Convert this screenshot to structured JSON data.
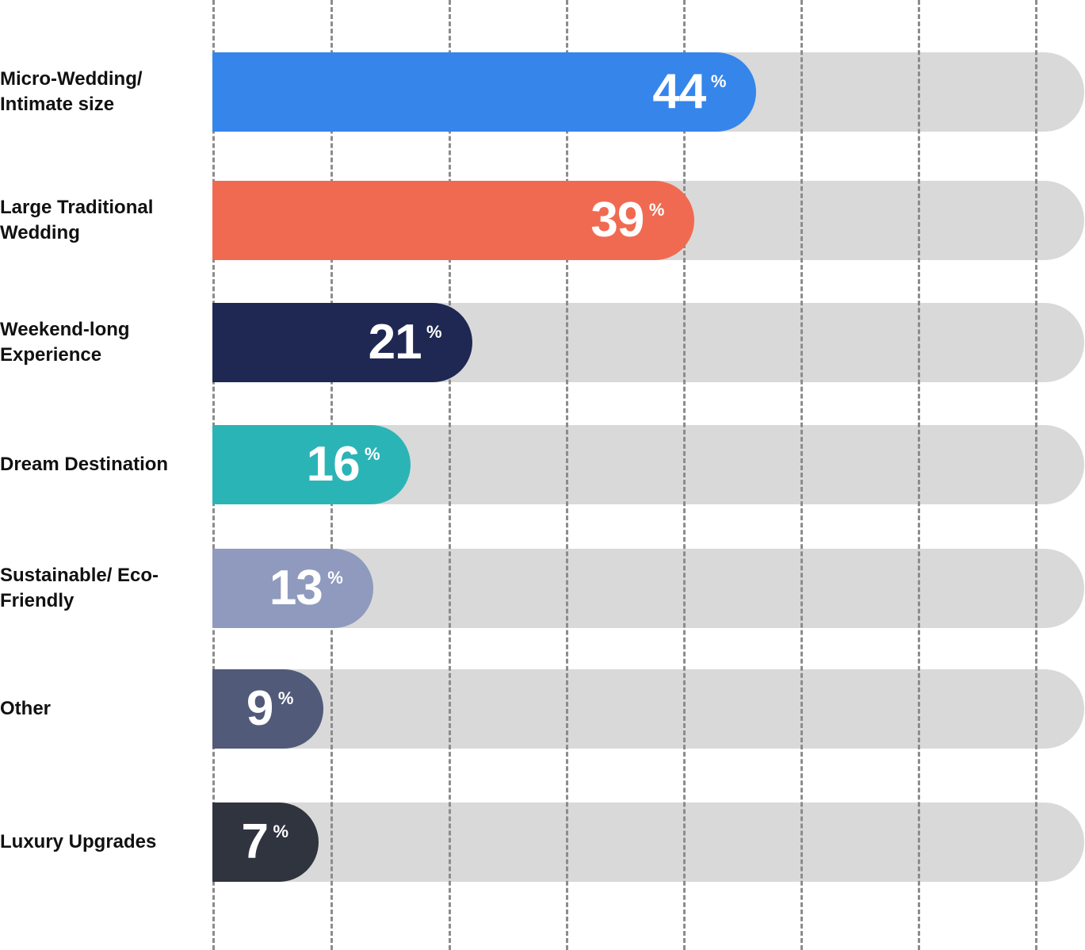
{
  "chart_data": {
    "type": "bar",
    "orientation": "horizontal",
    "title": "",
    "xlabel": "",
    "ylabel": "",
    "xlim": [
      0,
      70.5
    ],
    "grid": true,
    "unit": "%",
    "categories": [
      "Micro-Wedding/ Intimate size",
      "Large Traditional Wedding",
      "Weekend-long Experience",
      "Dream Destination",
      "Sustainable/ Eco-Friendly",
      "Other",
      "Luxury Upgrades"
    ],
    "values": [
      44,
      39,
      21,
      16,
      13,
      9,
      7
    ],
    "value_labels": [
      "44",
      "39",
      "21",
      "16",
      "13",
      "9",
      "7"
    ],
    "percent_sign": "%",
    "colors": [
      "#3585eb",
      "#f06a51",
      "#1f2852",
      "#2bb4b6",
      "#8f9abe",
      "#515a78",
      "#2f343f"
    ],
    "track_color": "#d9d9d9"
  }
}
